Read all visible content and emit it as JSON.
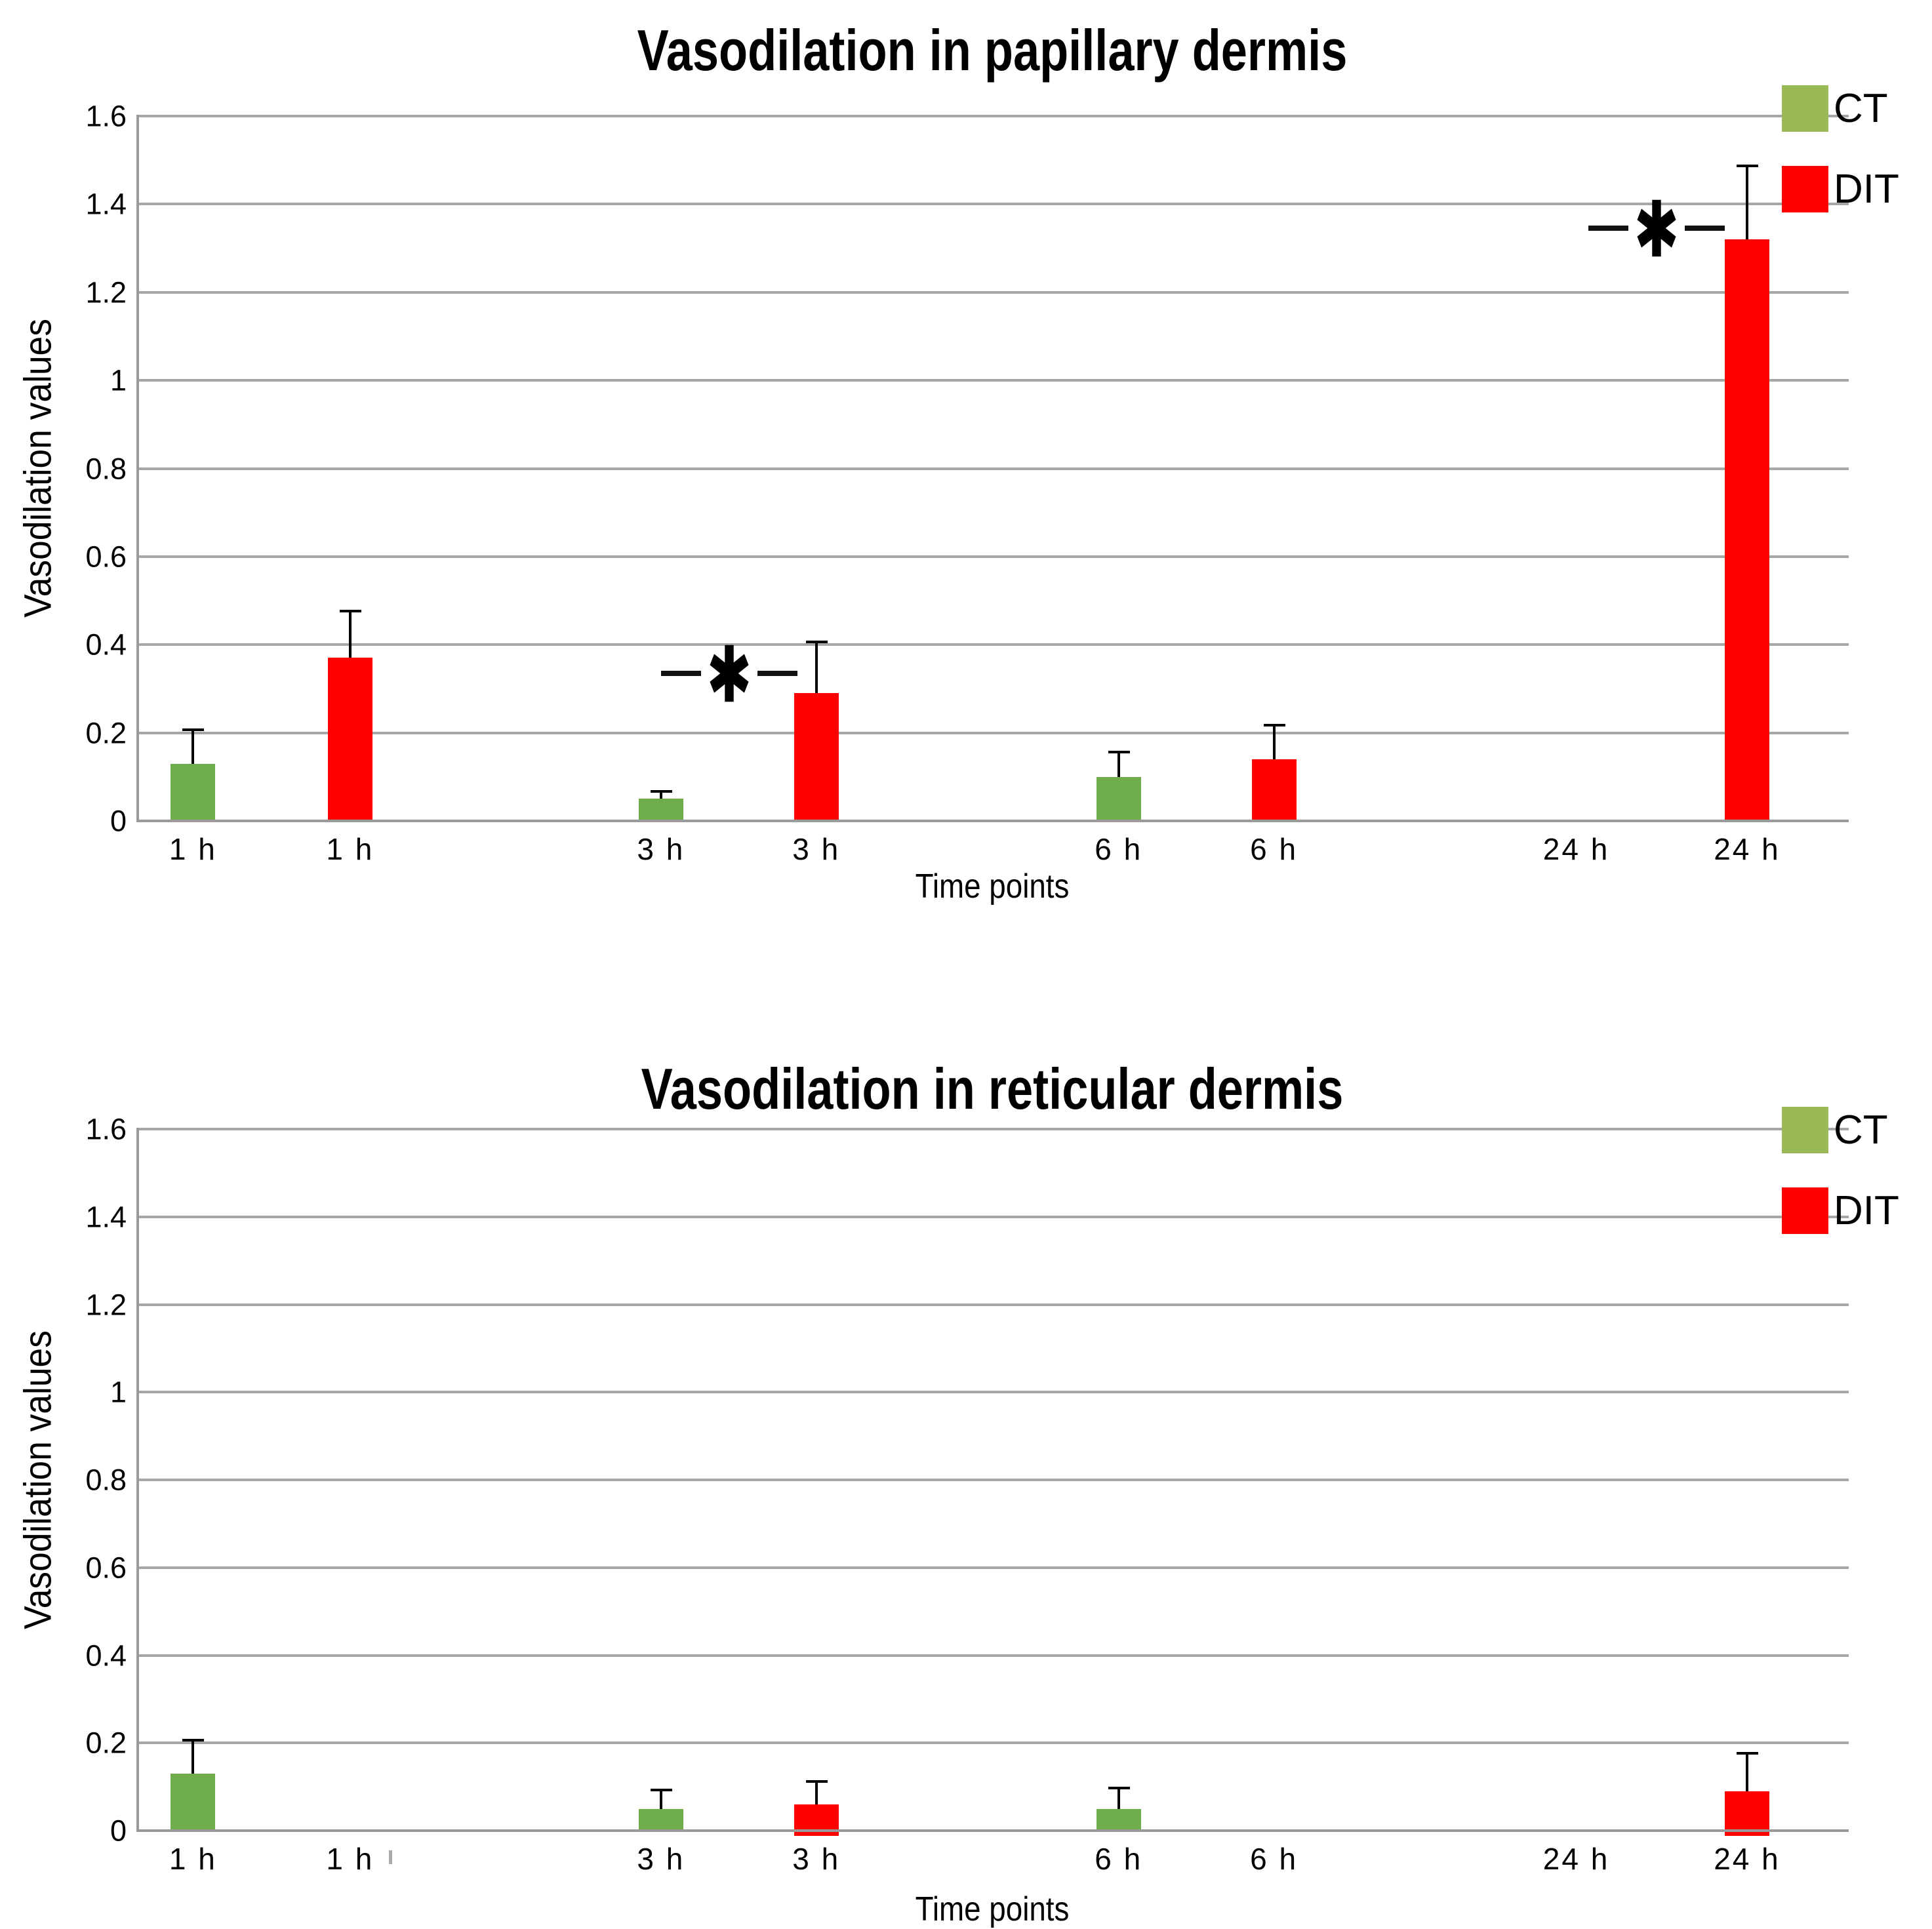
{
  "colors": {
    "ct_bar": "#6FAC4B",
    "dit_bar": "#FF0000",
    "legend_ct": "#9ABA57",
    "legend_dit": "#FF0000",
    "gridline": "#A6A6A6",
    "axis_line": "#9A9A9A",
    "text": "#000000",
    "background": "#FFFFFF"
  },
  "legend": {
    "position": "top-right",
    "items": [
      {
        "label": "CT",
        "color": "#9ABA57"
      },
      {
        "label": "DIT",
        "color": "#FF0000"
      }
    ]
  },
  "chart_data": [
    {
      "type": "bar",
      "title": "Vasodilation in papillary dermis",
      "xlabel": "Time points",
      "ylabel": "Vasodilation values",
      "ylim": [
        0,
        1.6
      ],
      "grid": true,
      "yticks": [
        0,
        0.2,
        0.4,
        0.6,
        0.8,
        1.0,
        1.2,
        1.4,
        1.6
      ],
      "ytick_labels": [
        "0",
        "0.2",
        "0.4",
        "0.6",
        "0.8",
        "1",
        "1.2",
        "1.4",
        "1.6"
      ],
      "categories": [
        "1 h",
        "1 h",
        "3 h",
        "3 h",
        "6 h",
        "6 h",
        "24 h",
        "24 h"
      ],
      "series_of_bar": [
        "CT",
        "DIT",
        "CT",
        "DIT",
        "CT",
        "DIT",
        "CT",
        "DIT"
      ],
      "values": [
        0.13,
        0.37,
        0.05,
        0.29,
        0.1,
        0.14,
        0,
        1.32
      ],
      "error_top": [
        0.21,
        0.48,
        0.07,
        0.41,
        0.16,
        0.22,
        null,
        1.49
      ],
      "bar_centers_pct": [
        3.2,
        12.4,
        30.6,
        39.7,
        57.4,
        66.5,
        84.2,
        94.2
      ],
      "dips_below_axis": [
        0,
        0,
        0,
        0,
        0,
        0,
        0,
        0
      ],
      "annotations": [
        {
          "type": "significance",
          "symbol": "*",
          "center_pct": 34.6,
          "value": 0.335
        },
        {
          "type": "significance",
          "symbol": "*",
          "center_pct": 88.9,
          "value": 1.345
        }
      ]
    },
    {
      "type": "bar",
      "title": "Vasodilation in reticular dermis",
      "xlabel": "Time points",
      "ylabel": "Vasodilation values",
      "ylim": [
        0,
        1.6
      ],
      "grid": true,
      "yticks": [
        0,
        0.2,
        0.4,
        0.6,
        0.8,
        1.0,
        1.2,
        1.4,
        1.6
      ],
      "ytick_labels": [
        "0",
        "0.2",
        "0.4",
        "0.6",
        "0.8",
        "1",
        "1.2",
        "1.4",
        "1.6"
      ],
      "categories": [
        "1 h",
        "1 h",
        "3 h",
        "3 h",
        "6 h",
        "6 h",
        "24 h",
        "24 h"
      ],
      "series_of_bar": [
        "CT",
        "DIT",
        "CT",
        "DIT",
        "CT",
        "DIT",
        "CT",
        "DIT"
      ],
      "values": [
        0.13,
        0,
        0.05,
        0.06,
        0.05,
        0,
        0,
        0.09
      ],
      "error_top": [
        0.21,
        null,
        0.095,
        0.115,
        0.1,
        null,
        null,
        0.18
      ],
      "bar_centers_pct": [
        3.2,
        12.4,
        30.6,
        39.7,
        57.4,
        66.5,
        84.2,
        94.2
      ],
      "dips_below_axis": [
        0,
        0,
        0,
        1,
        0,
        0,
        0,
        1
      ],
      "annotations": [
        {
          "type": "stray-tick",
          "center_pct": 14.75
        }
      ]
    }
  ]
}
